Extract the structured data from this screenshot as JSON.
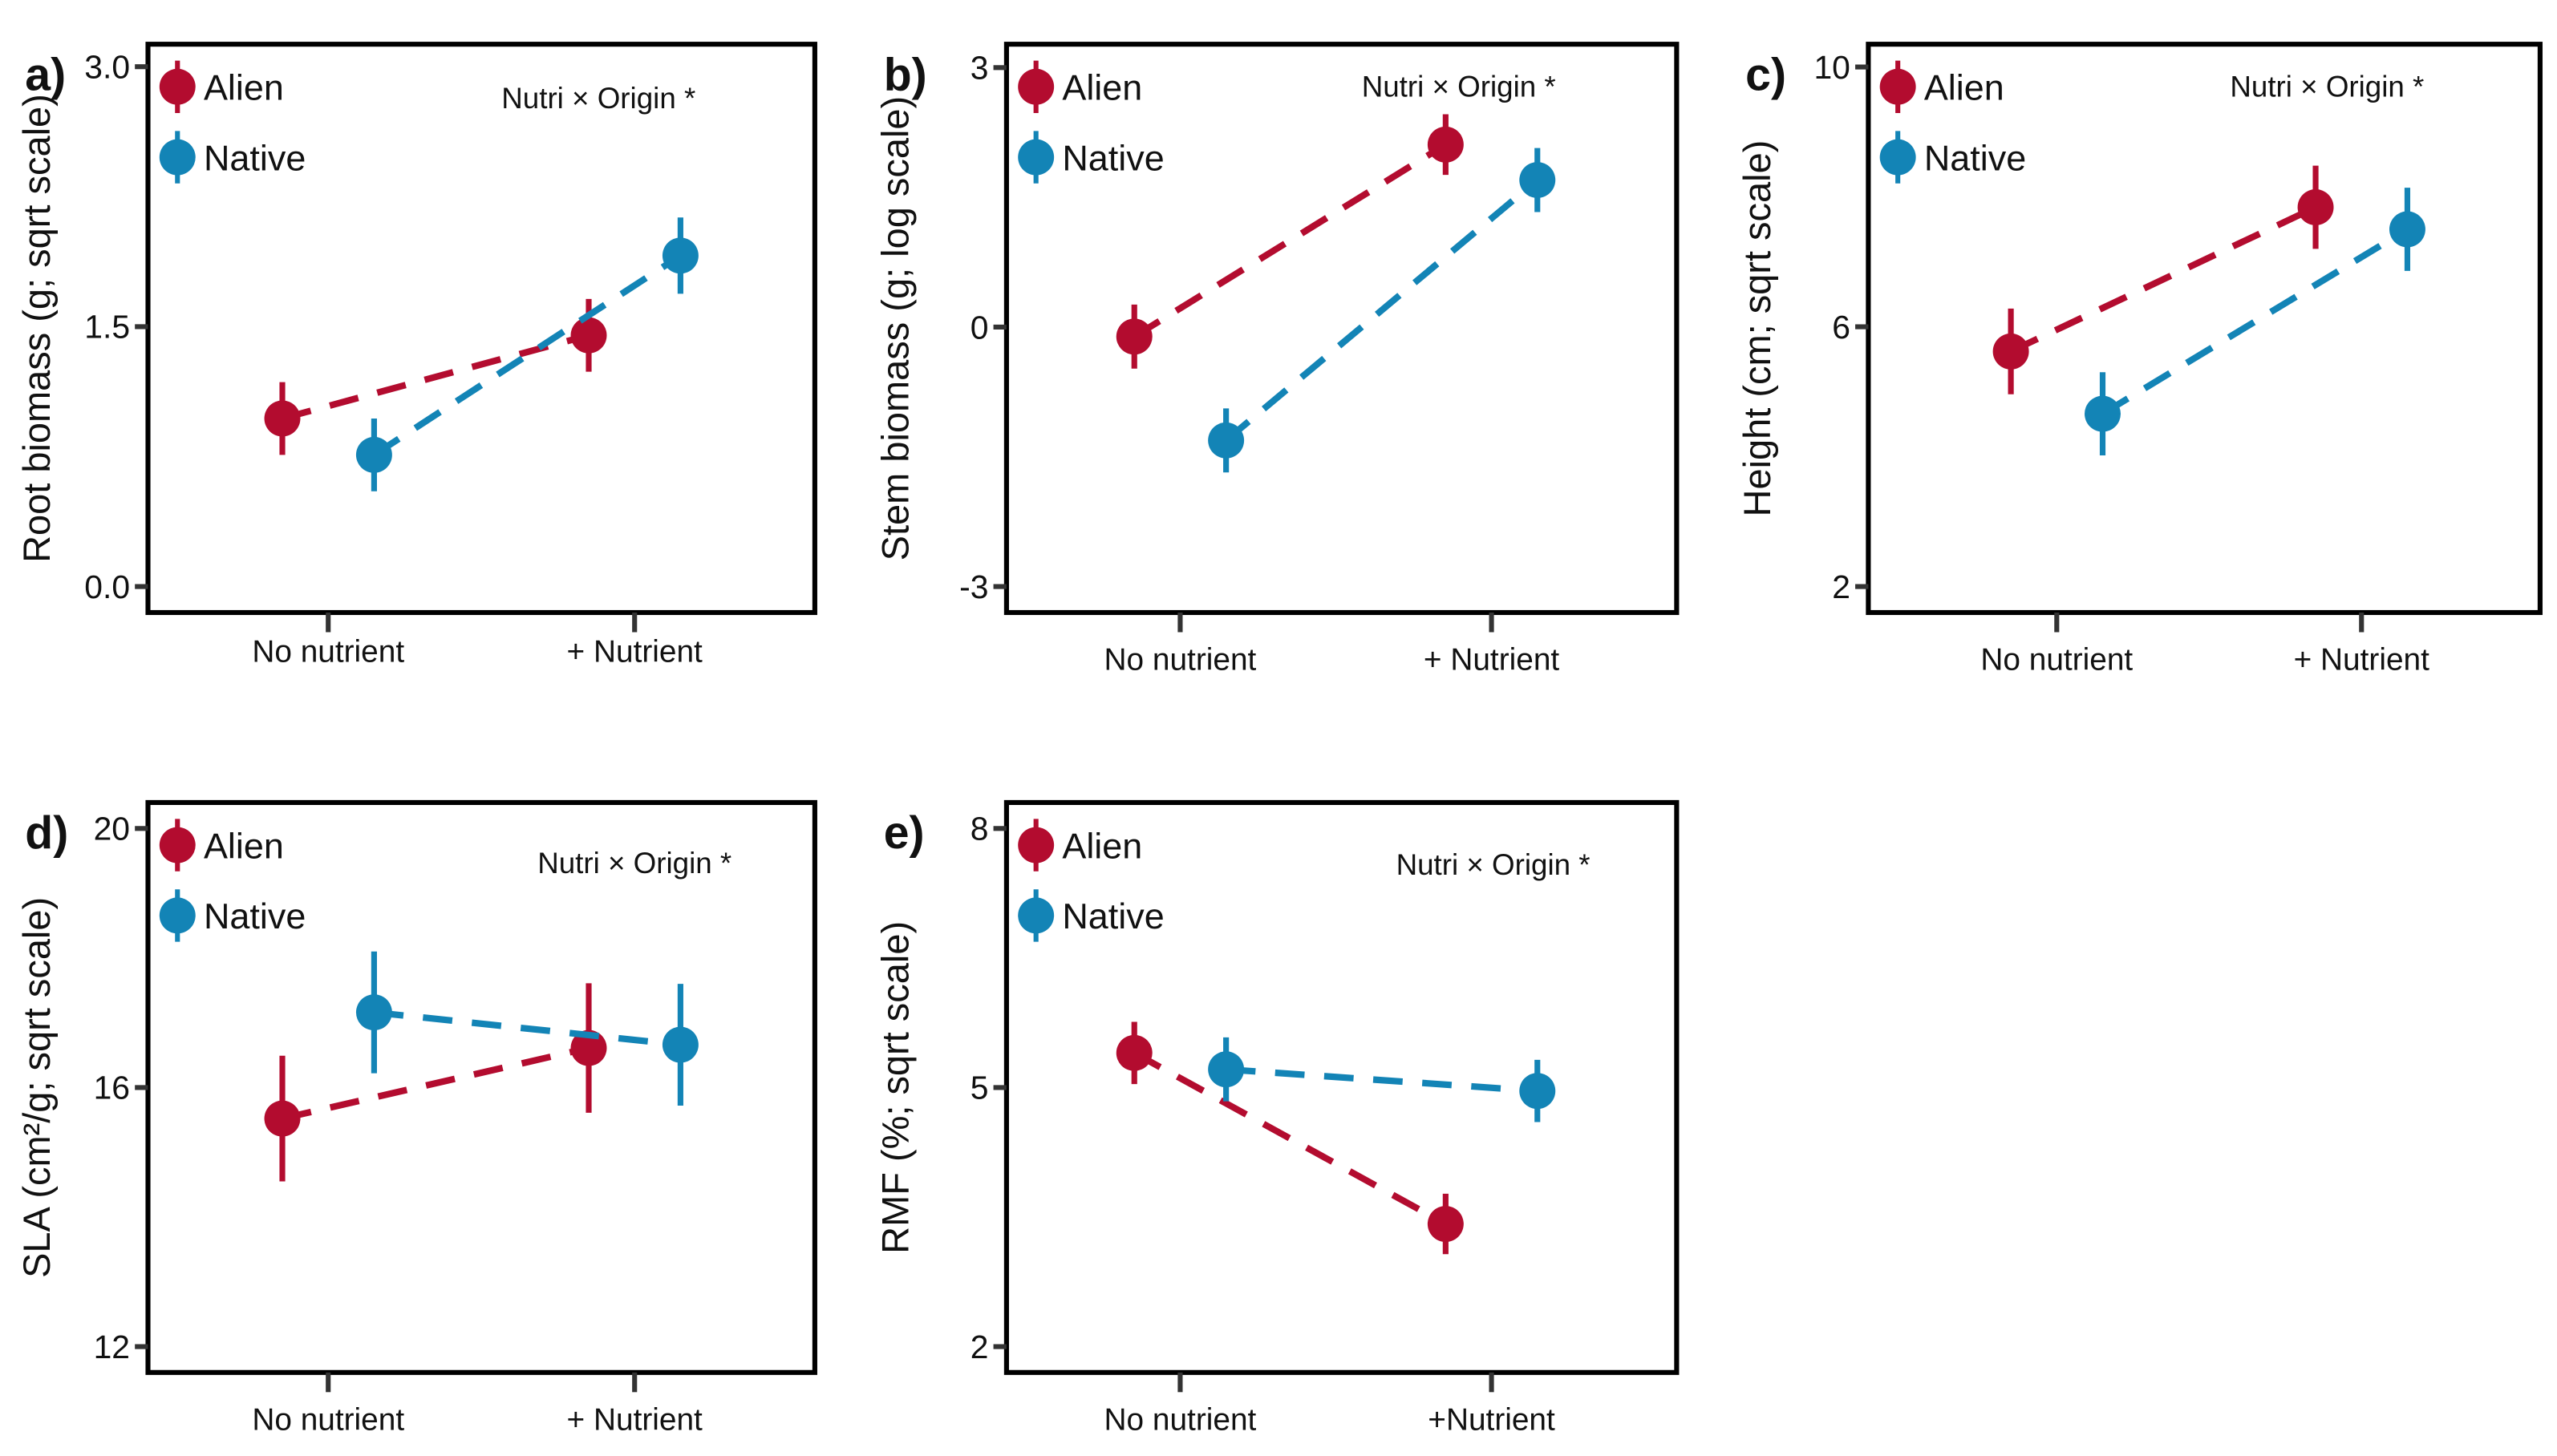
{
  "colors": {
    "alien": "#b30c2f",
    "native": "#1384b6"
  },
  "chart_data": [
    {
      "panel": "a)",
      "type": "scatter",
      "ylabel": "Root biomass (g; sqrt scale)",
      "annotation": "Nutri × Origin *",
      "categories": [
        "No nutrient",
        "+ Nutrient"
      ],
      "yticks": [
        0.0,
        1.5,
        3.0
      ],
      "ytick_labels": [
        "0.0",
        "1.5",
        "3.0"
      ],
      "ylim": [
        -0.15,
        3.13
      ],
      "series": [
        {
          "name": "Alien",
          "values": [
            0.97,
            1.45
          ],
          "errors": [
            0.21,
            0.21
          ]
        },
        {
          "name": "Native",
          "values": [
            0.76,
            1.91
          ],
          "errors": [
            0.21,
            0.22
          ]
        }
      ]
    },
    {
      "panel": "b)",
      "type": "scatter",
      "ylabel": "Stem biomass (g; log scale)",
      "annotation": "Nutri × Origin *",
      "categories": [
        "No nutrient",
        "+ Nutrient"
      ],
      "yticks": [
        -3,
        0,
        3
      ],
      "ytick_labels": [
        "-3",
        "0",
        "3"
      ],
      "ylim": [
        -3.3,
        3.27
      ],
      "series": [
        {
          "name": "Alien",
          "values": [
            -0.11,
            2.11
          ],
          "errors": [
            0.37,
            0.35
          ]
        },
        {
          "name": "Native",
          "values": [
            -1.31,
            1.7
          ],
          "errors": [
            0.37,
            0.37
          ]
        }
      ]
    },
    {
      "panel": "c)",
      "type": "scatter",
      "ylabel": "Height (cm; sqrt scale)",
      "annotation": "Nutri × Origin *",
      "categories": [
        "No nutrient",
        "+ Nutrient"
      ],
      "yticks": [
        2,
        6,
        10
      ],
      "ytick_labels": [
        "2",
        "6",
        "10"
      ],
      "ylim": [
        1.6,
        10.35
      ],
      "series": [
        {
          "name": "Alien",
          "values": [
            5.62,
            7.84
          ],
          "errors": [
            0.66,
            0.64
          ]
        },
        {
          "name": "Native",
          "values": [
            4.66,
            7.5
          ],
          "errors": [
            0.64,
            0.64
          ]
        }
      ]
    },
    {
      "panel": "d)",
      "type": "scatter",
      "ylabel": "SLA (cm²/g; sqrt scale)",
      "annotation": "Nutri × Origin *",
      "categories": [
        "No nutrient",
        "+ Nutrient"
      ],
      "yticks": [
        12,
        16,
        20
      ],
      "ytick_labels": [
        "12",
        "16",
        "20"
      ],
      "ylim": [
        11.6,
        20.4
      ],
      "series": [
        {
          "name": "Alien",
          "values": [
            15.52,
            16.61
          ],
          "errors": [
            0.97,
            1.0
          ]
        },
        {
          "name": "Native",
          "values": [
            17.16,
            16.66
          ],
          "errors": [
            0.94,
            0.94
          ]
        }
      ]
    },
    {
      "panel": "e)",
      "type": "scatter",
      "ylabel": "RMF (%; sqrt scale)",
      "annotation": "Nutri × Origin *",
      "categories": [
        "No nutrient",
        "+Nutrient"
      ],
      "yticks": [
        2,
        5,
        8
      ],
      "ytick_labels": [
        "2",
        "5",
        "8"
      ],
      "ylim": [
        1.7,
        8.3
      ],
      "series": [
        {
          "name": "Alien",
          "values": [
            5.4,
            3.42
          ],
          "errors": [
            0.36,
            0.35
          ]
        },
        {
          "name": "Native",
          "values": [
            5.21,
            4.96
          ],
          "errors": [
            0.37,
            0.36
          ]
        }
      ]
    }
  ]
}
